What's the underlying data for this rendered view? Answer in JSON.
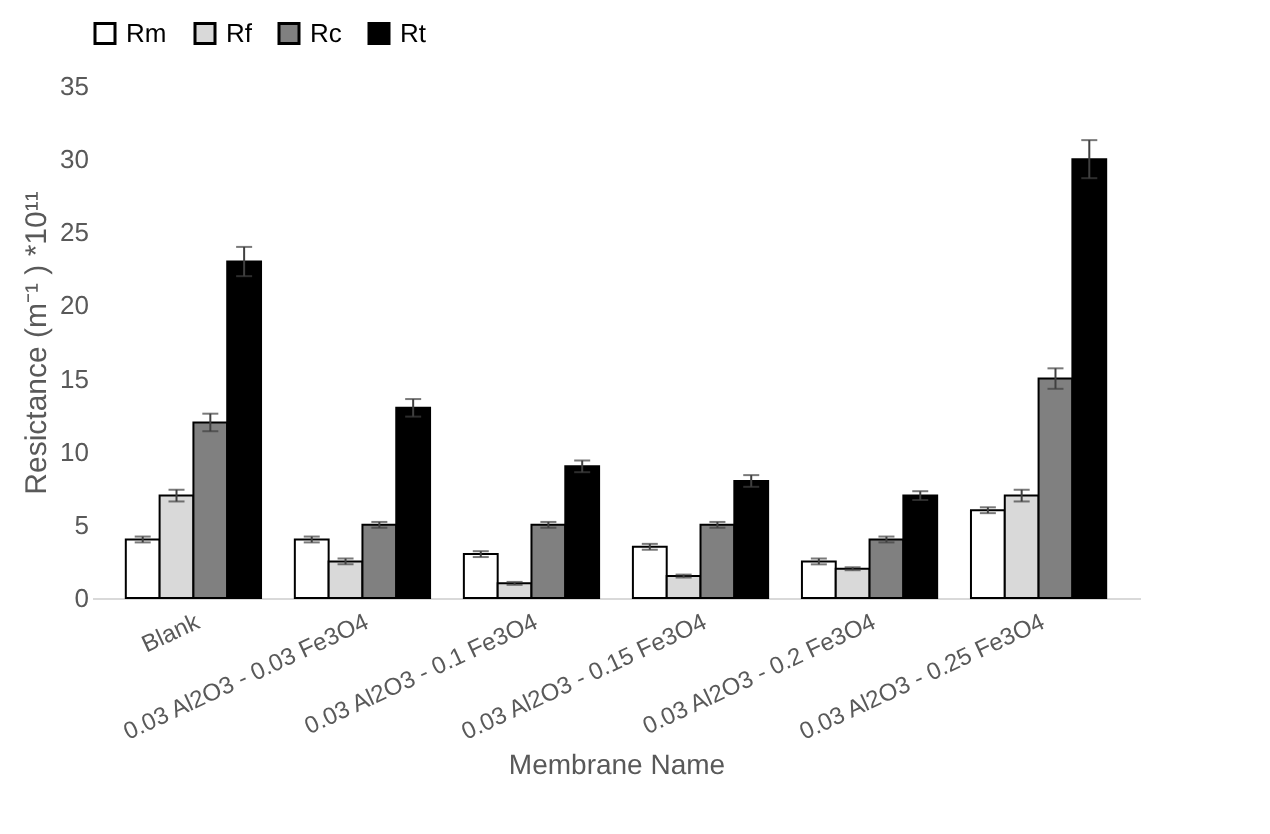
{
  "chart_data": {
    "type": "bar",
    "xlabel": "Membrane Name",
    "ylabel": "Resictance (m⁻¹ ) *10¹¹",
    "categories": [
      "Blank",
      "0.03 Al2O3 - 0.03 Fe3O4",
      "0.03 Al2O3 - 0.1 Fe3O4",
      "0.03 Al2O3 - 0.15 Fe3O4",
      "0.03 Al2O3 - 0.2 Fe3O4",
      "0.03 Al2O3 - 0.25 Fe3O4"
    ],
    "series": [
      {
        "name": "Rm",
        "color": "#ffffff",
        "values": [
          4,
          4,
          3,
          3.5,
          2.5,
          6
        ],
        "errors": [
          0.2,
          0.2,
          0.2,
          0.2,
          0.2,
          0.2
        ]
      },
      {
        "name": "Rf",
        "color": "#d9d9d9",
        "values": [
          7,
          2.5,
          1,
          1.5,
          2,
          7
        ],
        "errors": [
          0.4,
          0.2,
          0.1,
          0.1,
          0.1,
          0.4
        ]
      },
      {
        "name": "Rc",
        "color": "#808080",
        "values": [
          12,
          5,
          5,
          5,
          4,
          15
        ],
        "errors": [
          0.6,
          0.2,
          0.2,
          0.2,
          0.2,
          0.7
        ]
      },
      {
        "name": "Rt",
        "color": "#000000",
        "values": [
          23,
          13,
          9,
          8,
          7,
          30
        ],
        "errors": [
          1,
          0.6,
          0.4,
          0.4,
          0.3,
          1.3
        ]
      }
    ],
    "ylim": [
      0,
      35
    ],
    "yticks": [
      0,
      5,
      10,
      15,
      20,
      25,
      30,
      35
    ],
    "grid": false,
    "legend": "top"
  }
}
